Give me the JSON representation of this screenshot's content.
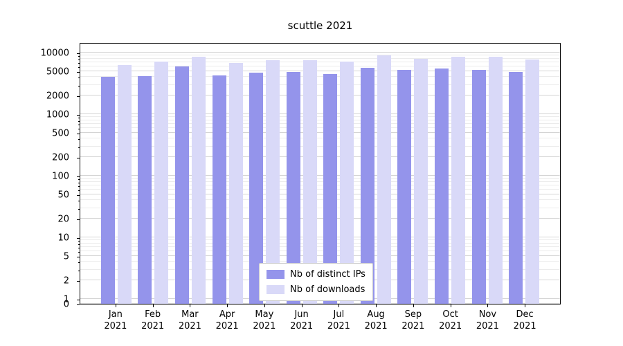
{
  "chart_data": {
    "type": "bar",
    "title": "scuttle 2021",
    "categories": [
      "Jan",
      "Feb",
      "Mar",
      "Apr",
      "May",
      "Jun",
      "Jul",
      "Aug",
      "Sep",
      "Oct",
      "Nov",
      "Dec"
    ],
    "year": "2021",
    "series": [
      {
        "name": "Nb of distinct IPs",
        "color": "#9494eb",
        "values": [
          4000,
          4200,
          5900,
          4300,
          4700,
          4800,
          4500,
          5600,
          5200,
          5500,
          5300,
          4800
        ]
      },
      {
        "name": "Nb of downloads",
        "color": "#d9d9f8",
        "values": [
          6300,
          7100,
          8600,
          6800,
          7500,
          7600,
          7200,
          9000,
          8000,
          8600,
          8600,
          7800
        ]
      }
    ],
    "yticks": [
      0,
      1,
      2,
      5,
      10,
      20,
      50,
      100,
      200,
      500,
      1000,
      2000,
      5000,
      10000
    ],
    "yscale": "symlog",
    "ylim": [
      0,
      14000
    ],
    "grid": true,
    "legend_position": "lower center"
  }
}
